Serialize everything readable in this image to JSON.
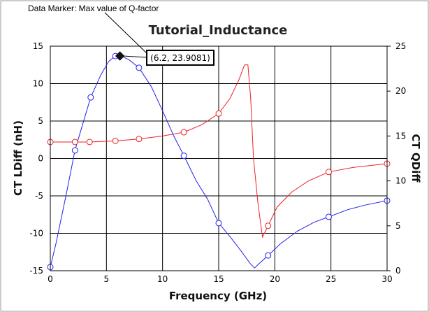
{
  "chart_data": {
    "type": "line",
    "title": "Tutorial_Inductance",
    "xlabel": "Frequency (GHz)",
    "ylabel_left": "CT LDiff (nH)",
    "ylabel_right": "CT QDiff",
    "xlim": [
      0,
      30
    ],
    "ylim_left": [
      -15,
      15
    ],
    "ylim_right": [
      0,
      25
    ],
    "xticks": [
      0,
      5,
      10,
      15,
      20,
      25,
      30
    ],
    "yticks_left": [
      -15,
      -10,
      -5,
      0,
      5,
      10,
      15
    ],
    "yticks_right": [
      0,
      5,
      10,
      15,
      20,
      25
    ],
    "grid": true,
    "colors": {
      "ldiff": "#ee2222",
      "qdiff": "#2222ee"
    },
    "series": [
      {
        "axis": "left",
        "color": "#ee2222",
        "x": [
          0,
          2.2,
          3.5,
          5.8,
          7.9,
          10,
          11.9,
          13.5,
          15,
          16,
          16.8,
          17.3,
          17.6,
          17.85,
          18.1,
          18.5,
          18.9,
          19.4,
          20.2,
          21.5,
          23,
          24.8,
          27,
          30
        ],
        "y": [
          2.2,
          2.2,
          2.2,
          2.35,
          2.6,
          3.0,
          3.5,
          4.5,
          6.0,
          8.0,
          10.5,
          12.5,
          12.5,
          8.0,
          0.0,
          -6.0,
          -10.5,
          -9.0,
          -6.5,
          -4.5,
          -3.0,
          -1.8,
          -1.2,
          -0.7
        ]
      },
      {
        "axis": "right",
        "color": "#2222ee",
        "x": [
          0,
          0.5,
          1,
          1.5,
          2.2,
          3,
          3.6,
          4.5,
          5.2,
          5.8,
          6.3,
          7,
          7.9,
          9,
          10,
          11,
          11.9,
          13,
          14,
          15,
          16,
          17,
          17.8,
          18.2,
          18.7,
          19.4,
          20.5,
          22,
          23.5,
          24.8,
          26.5,
          28,
          30
        ],
        "y": [
          0.4,
          3.0,
          6.0,
          9.0,
          13.4,
          16.8,
          19.3,
          21.8,
          23.3,
          23.9,
          23.9,
          23.5,
          22.6,
          20.5,
          17.8,
          15.0,
          12.8,
          10.0,
          8.0,
          5.3,
          3.8,
          2.2,
          0.8,
          0.3,
          0.9,
          1.7,
          3.0,
          4.4,
          5.4,
          6.0,
          6.8,
          7.3,
          7.8
        ]
      }
    ],
    "markers": [
      {
        "series": 0,
        "x": [
          0,
          2.2,
          3.5,
          5.8,
          7.9,
          11.9,
          15,
          19.4,
          24.8,
          30
        ]
      },
      {
        "series": 1,
        "x": [
          0,
          2.2,
          3.6,
          5.8,
          7.9,
          11.9,
          15,
          19.4,
          24.8,
          30
        ]
      }
    ],
    "data_marker": {
      "x": 6.2,
      "y": 23.9081,
      "axis": "right",
      "label": "(6.2, 23.9081)",
      "annotation": "Data Marker: Max value of Q-factor"
    }
  }
}
